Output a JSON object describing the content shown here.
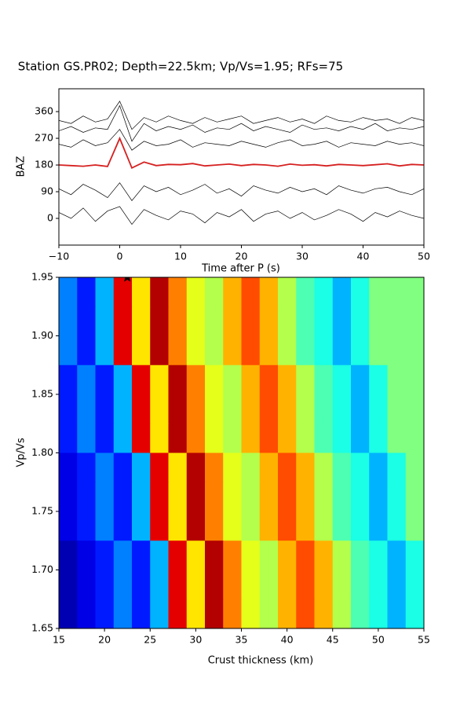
{
  "chart_data": [
    {
      "type": "line",
      "title": "Station GS.PR02; Depth=22.5km; Vp/Vs=1.95; RFs=75",
      "xlabel": "Time after P (s)",
      "ylabel": "BAZ",
      "x": [
        -10,
        -8,
        -6,
        -4,
        -2,
        0,
        2,
        4,
        6,
        8,
        10,
        12,
        14,
        16,
        18,
        20,
        22,
        24,
        26,
        28,
        30,
        32,
        34,
        36,
        38,
        40,
        42,
        44,
        46,
        48,
        50
      ],
      "xlim": [
        -10,
        50
      ],
      "xticks": [
        {
          "value": -10,
          "label": "−10"
        },
        0,
        10,
        20,
        30,
        40,
        50
      ],
      "ylim": [
        -90,
        437
      ],
      "yticks": [
        0,
        90,
        180,
        270,
        360
      ],
      "series": [
        {
          "color": "#000000",
          "values": [
            295,
            310,
            290,
            305,
            300,
            380,
            260,
            320,
            295,
            310,
            300,
            315,
            290,
            305,
            300,
            320,
            295,
            310,
            300,
            290,
            315,
            300,
            305,
            295,
            310,
            300,
            320,
            295,
            305,
            300,
            310
          ]
        },
        {
          "color": "#000000",
          "values": [
            330,
            320,
            345,
            325,
            335,
            395,
            300,
            340,
            325,
            345,
            330,
            320,
            340,
            325,
            335,
            345,
            320,
            330,
            340,
            325,
            335,
            320,
            345,
            330,
            325,
            340,
            330,
            335,
            320,
            340,
            330
          ]
        },
        {
          "color": "#000000",
          "values": [
            250,
            240,
            265,
            245,
            255,
            300,
            230,
            260,
            245,
            250,
            265,
            240,
            255,
            250,
            245,
            260,
            250,
            240,
            255,
            265,
            245,
            250,
            260,
            240,
            255,
            250,
            245,
            260,
            250,
            255,
            245
          ]
        },
        {
          "color": "#000000",
          "values": [
            100,
            80,
            115,
            95,
            70,
            120,
            60,
            110,
            90,
            105,
            80,
            95,
            115,
            85,
            100,
            75,
            110,
            95,
            85,
            105,
            90,
            100,
            80,
            110,
            95,
            85,
            100,
            105,
            90,
            80,
            100
          ]
        },
        {
          "color": "#000000",
          "values": [
            20,
            0,
            35,
            -10,
            25,
            40,
            -20,
            30,
            10,
            -5,
            25,
            15,
            -15,
            20,
            5,
            30,
            -10,
            15,
            25,
            0,
            20,
            -5,
            10,
            30,
            15,
            -10,
            20,
            5,
            25,
            10,
            0
          ]
        },
        {
          "color": "#d62020",
          "values": [
            180,
            178,
            176,
            180,
            175,
            270,
            170,
            190,
            178,
            182,
            181,
            185,
            177,
            180,
            183,
            178,
            182,
            180,
            176,
            183,
            179,
            181,
            177,
            182,
            180,
            178,
            181,
            184,
            177,
            182,
            180
          ]
        }
      ]
    },
    {
      "type": "heatmap",
      "xlabel": "Crust thickness (km)",
      "ylabel": "Vp/Vs",
      "xlim": [
        15,
        55
      ],
      "ylim": [
        1.65,
        1.95
      ],
      "xticks": [
        15,
        20,
        25,
        30,
        35,
        40,
        45,
        50,
        55
      ],
      "yticks": [
        1.65,
        {
          "value": 1.7,
          "label": "1.70"
        },
        1.75,
        {
          "value": 1.8,
          "label": "1.80"
        },
        1.85,
        {
          "value": 1.9,
          "label": "1.90"
        },
        1.95
      ],
      "colormap": "jet",
      "zlim": [
        0,
        1
      ],
      "best": {
        "x": 22.5,
        "y": 1.95
      },
      "z": [
        [
          0.25,
          0.15,
          0.3,
          0.9,
          0.65,
          0.95,
          0.75,
          0.6,
          0.55,
          0.7,
          0.8,
          0.7,
          0.55,
          0.45,
          0.4,
          0.3,
          0.4,
          0.5,
          0.5,
          0.5
        ],
        [
          0.25,
          0.15,
          0.3,
          0.9,
          0.65,
          0.95,
          0.75,
          0.6,
          0.55,
          0.7,
          0.8,
          0.7,
          0.55,
          0.45,
          0.4,
          0.3,
          0.4,
          0.5,
          0.5,
          0.5
        ],
        [
          0.25,
          0.15,
          0.3,
          0.9,
          0.65,
          0.95,
          0.75,
          0.6,
          0.55,
          0.7,
          0.8,
          0.7,
          0.55,
          0.45,
          0.4,
          0.3,
          0.4,
          0.5,
          0.5,
          0.5
        ],
        [
          0.15,
          0.25,
          0.15,
          0.3,
          0.9,
          0.65,
          0.95,
          0.75,
          0.6,
          0.55,
          0.7,
          0.8,
          0.7,
          0.55,
          0.45,
          0.4,
          0.3,
          0.4,
          0.5,
          0.5
        ],
        [
          0.15,
          0.25,
          0.15,
          0.3,
          0.9,
          0.65,
          0.95,
          0.75,
          0.6,
          0.55,
          0.7,
          0.8,
          0.7,
          0.55,
          0.45,
          0.4,
          0.3,
          0.4,
          0.5,
          0.5
        ],
        [
          0.15,
          0.25,
          0.15,
          0.3,
          0.9,
          0.65,
          0.95,
          0.75,
          0.6,
          0.55,
          0.7,
          0.8,
          0.7,
          0.55,
          0.45,
          0.4,
          0.3,
          0.4,
          0.5,
          0.5
        ],
        [
          0.1,
          0.15,
          0.25,
          0.15,
          0.3,
          0.9,
          0.65,
          0.95,
          0.75,
          0.6,
          0.55,
          0.7,
          0.8,
          0.7,
          0.55,
          0.45,
          0.4,
          0.3,
          0.4,
          0.5
        ],
        [
          0.1,
          0.15,
          0.25,
          0.15,
          0.3,
          0.9,
          0.65,
          0.95,
          0.75,
          0.6,
          0.55,
          0.7,
          0.8,
          0.7,
          0.55,
          0.45,
          0.4,
          0.3,
          0.4,
          0.5
        ],
        [
          0.1,
          0.15,
          0.25,
          0.15,
          0.3,
          0.9,
          0.65,
          0.95,
          0.75,
          0.6,
          0.55,
          0.7,
          0.8,
          0.7,
          0.55,
          0.45,
          0.4,
          0.3,
          0.4,
          0.5
        ],
        [
          0.05,
          0.1,
          0.15,
          0.25,
          0.15,
          0.3,
          0.9,
          0.65,
          0.95,
          0.75,
          0.6,
          0.55,
          0.7,
          0.8,
          0.7,
          0.55,
          0.45,
          0.4,
          0.3,
          0.4
        ],
        [
          0.05,
          0.1,
          0.15,
          0.25,
          0.15,
          0.3,
          0.9,
          0.65,
          0.95,
          0.75,
          0.6,
          0.55,
          0.7,
          0.8,
          0.7,
          0.55,
          0.45,
          0.4,
          0.3,
          0.4
        ],
        [
          0.05,
          0.1,
          0.15,
          0.25,
          0.15,
          0.3,
          0.9,
          0.65,
          0.95,
          0.75,
          0.6,
          0.55,
          0.7,
          0.8,
          0.7,
          0.55,
          0.45,
          0.4,
          0.3,
          0.4
        ]
      ]
    }
  ]
}
